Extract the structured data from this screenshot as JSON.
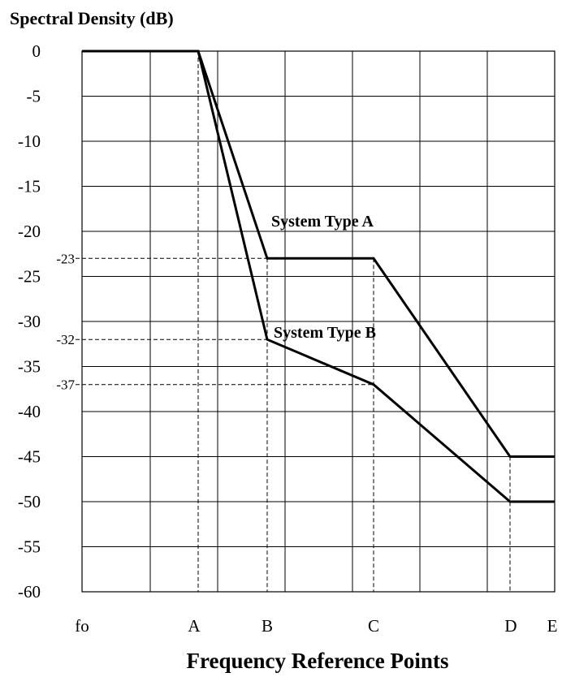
{
  "chart_data": {
    "type": "line",
    "ylabel": "Spectral Density (dB)",
    "xlabel": "Frequency Reference Points",
    "ylim": [
      -60,
      0
    ],
    "yticks": [
      "0",
      "-5",
      "-10",
      "-15",
      "-20",
      "-25",
      "-30",
      "-35",
      "-40",
      "-45",
      "-50",
      "-55",
      "-60"
    ],
    "x_points": [
      "fo",
      "A",
      "B",
      "C",
      "D",
      "E"
    ],
    "grid": true,
    "series": [
      {
        "name": "System Type A",
        "points": [
          {
            "x": "fo",
            "y": 0
          },
          {
            "x": "A",
            "y": 0
          },
          {
            "x": "B",
            "y": -23
          },
          {
            "x": "C",
            "y": -23
          },
          {
            "x": "D",
            "y": -45
          },
          {
            "x": "E",
            "y": -45
          }
        ]
      },
      {
        "name": "System Type B",
        "points": [
          {
            "x": "fo",
            "y": 0
          },
          {
            "x": "A",
            "y": 0
          },
          {
            "x": "B",
            "y": -32
          },
          {
            "x": "C",
            "y": -37
          },
          {
            "x": "D",
            "y": -50
          },
          {
            "x": "E",
            "y": -50
          }
        ]
      }
    ],
    "reference_levels": [
      "-23",
      "-32",
      "-37"
    ]
  }
}
